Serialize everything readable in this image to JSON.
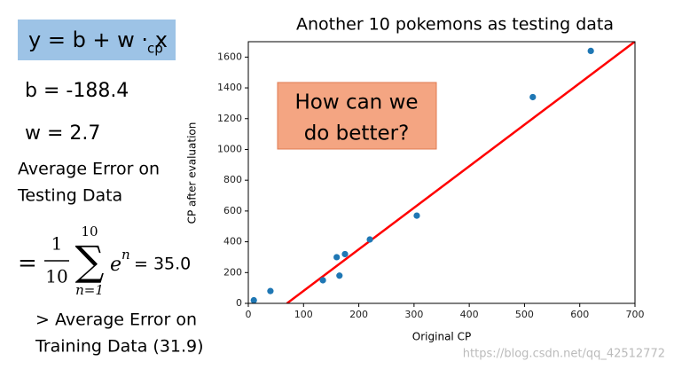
{
  "slide": {
    "formula_main": "y = b + w · x",
    "formula_sub": "cp",
    "b_text": "b = -188.4",
    "w_text": "w = 2.7",
    "avg_error_line1": "Average Error on",
    "avg_error_line2": "Testing Data",
    "sum_equals": "=",
    "frac_num": "1",
    "frac_den": "10",
    "sum_sign": "∑",
    "sum_upper": "10",
    "sum_lower": "n=1",
    "sum_term": "e",
    "sum_term_sup": "n",
    "sum_result": "= 35.0",
    "training_line1": "> Average Error on",
    "training_line2": "Training Data (31.9)",
    "callout_line1": "How can we",
    "callout_line2": "do better?",
    "watermark": "https://blog.csdn.net/qq_42512772"
  },
  "chart_data": {
    "type": "scatter",
    "title": "Another 10 pokemons as testing data",
    "xlabel": "Original CP",
    "ylabel": "CP after evaluation",
    "xlim": [
      0,
      700
    ],
    "ylim": [
      0,
      1700
    ],
    "xticks": [
      0,
      100,
      200,
      300,
      400,
      500,
      600,
      700
    ],
    "yticks": [
      0,
      200,
      400,
      600,
      800,
      1000,
      1200,
      1400,
      1600
    ],
    "series": [
      {
        "color": "#1f77b4",
        "x": [
          10,
          40,
          135,
          160,
          165,
          175,
          220,
          305,
          515,
          620
        ],
        "values": [
          20,
          80,
          150,
          300,
          180,
          320,
          415,
          570,
          1340,
          1640
        ]
      },
      {
        "type": "line",
        "color": "#ff0000",
        "x": [
          70,
          700
        ],
        "values": [
          0,
          1701
        ]
      }
    ]
  }
}
